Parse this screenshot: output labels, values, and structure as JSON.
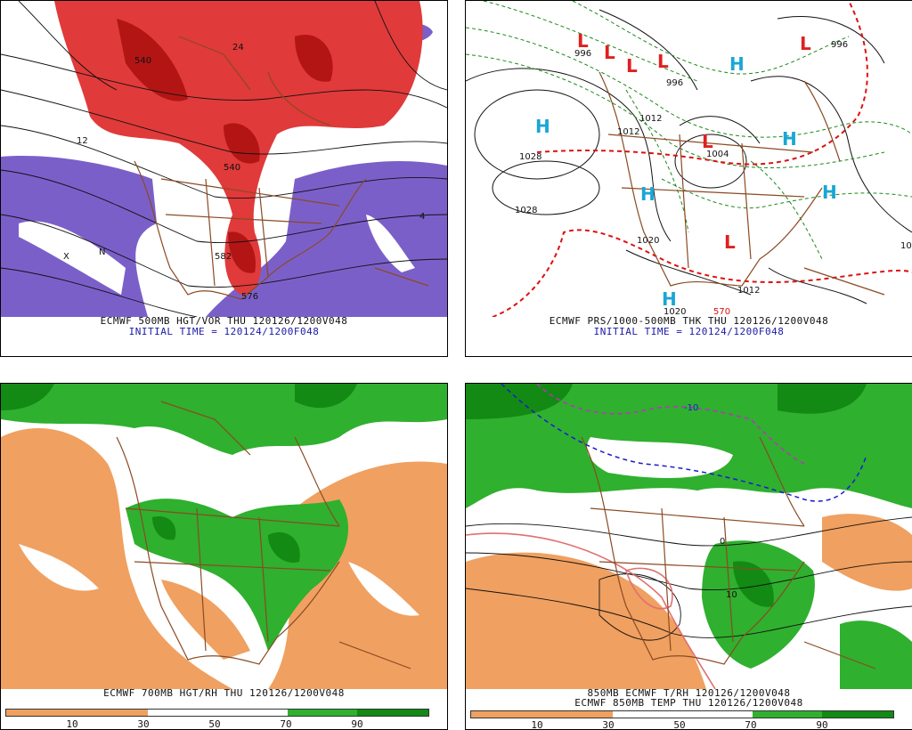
{
  "panels": [
    {
      "caption_line1": "ECMWF 500MB HGT/VOR THU 120126/1200V048",
      "caption_line2": "INITIAL TIME = 120124/1200F048",
      "contour_labels": [
        "540",
        "576",
        "582",
        "540",
        "12",
        "24",
        "N",
        "X",
        "4"
      ]
    },
    {
      "caption_line1": "ECMWF PRS/1000-500MB THK THU 120126/1200V048",
      "caption_line2": "INITIAL TIME = 120124/1200F048",
      "pressure_centers": [
        "L",
        "L",
        "L",
        "L",
        "L",
        "L",
        "L",
        "H",
        "H",
        "H",
        "H",
        "H",
        "H"
      ],
      "contour_labels": [
        "1028",
        "1028",
        "1020",
        "1012",
        "1012",
        "1004",
        "996",
        "996",
        "996",
        "1020",
        "1012",
        "570",
        "10"
      ]
    },
    {
      "caption_line1": "ECMWF 700MB HGT/RH THU 120126/1200V048",
      "scale_ticks": [
        "10",
        "30",
        "50",
        "70",
        "90"
      ]
    },
    {
      "caption_line1": "850MB ECMWF T/RH 120126/1200V048",
      "caption_line2": "ECMWF 850MB TEMP THU 120126/1200V048",
      "scale_ticks": [
        "10",
        "30",
        "50",
        "70",
        "90"
      ],
      "contour_labels": [
        "10",
        "0",
        "-10"
      ]
    }
  ],
  "colors": {
    "vorticity_red": "#e03a3a",
    "vorticity_dark": "#b31515",
    "vorticity_purple": "#7b5fc9",
    "rh_dry_orange": "#f0a060",
    "rh_moist_green": "#2fb02f",
    "rh_moist_dark": "#138a13",
    "map_brown": "#8a4a22",
    "thickness_red": "#dd1111",
    "isobar_green": "#1a8a1a",
    "high_cyan": "#1aa6d6",
    "low_red": "#e02020"
  }
}
